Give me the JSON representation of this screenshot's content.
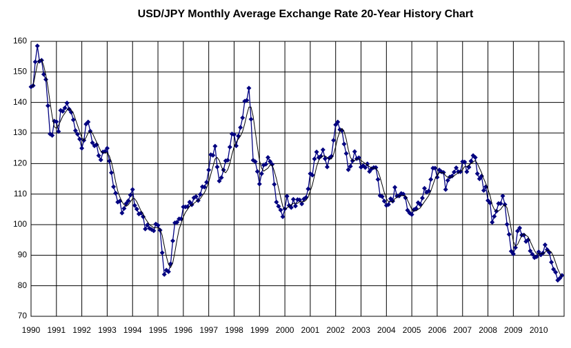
{
  "chart_data": {
    "type": "line",
    "title": "USD/JPY Monthly Average Exchange Rate 20-Year History Chart",
    "categories": [
      "1990",
      null,
      null,
      null,
      null,
      null,
      null,
      null,
      null,
      null,
      null,
      null,
      "1991",
      null,
      null,
      null,
      null,
      null,
      null,
      null,
      null,
      null,
      null,
      null,
      "1992",
      null,
      null,
      null,
      null,
      null,
      null,
      null,
      null,
      null,
      null,
      null,
      "1993",
      null,
      null,
      null,
      null,
      null,
      null,
      null,
      null,
      null,
      null,
      null,
      "1994",
      null,
      null,
      null,
      null,
      null,
      null,
      null,
      null,
      null,
      null,
      null,
      "1995",
      null,
      null,
      null,
      null,
      null,
      null,
      null,
      null,
      null,
      null,
      null,
      "1996",
      null,
      null,
      null,
      null,
      null,
      null,
      null,
      null,
      null,
      null,
      null,
      "1997",
      null,
      null,
      null,
      null,
      null,
      null,
      null,
      null,
      null,
      null,
      null,
      "1998",
      null,
      null,
      null,
      null,
      null,
      null,
      null,
      null,
      null,
      null,
      null,
      "1999",
      null,
      null,
      null,
      null,
      null,
      null,
      null,
      null,
      null,
      null,
      null,
      "2000",
      null,
      null,
      null,
      null,
      null,
      null,
      null,
      null,
      null,
      null,
      null,
      "2001",
      null,
      null,
      null,
      null,
      null,
      null,
      null,
      null,
      null,
      null,
      null,
      "2002",
      null,
      null,
      null,
      null,
      null,
      null,
      null,
      null,
      null,
      null,
      null,
      "2003",
      null,
      null,
      null,
      null,
      null,
      null,
      null,
      null,
      null,
      null,
      null,
      "2004",
      null,
      null,
      null,
      null,
      null,
      null,
      null,
      null,
      null,
      null,
      null,
      "2005",
      null,
      null,
      null,
      null,
      null,
      null,
      null,
      null,
      null,
      null,
      null,
      "2006",
      null,
      null,
      null,
      null,
      null,
      null,
      null,
      null,
      null,
      null,
      null,
      "2007",
      null,
      null,
      null,
      null,
      null,
      null,
      null,
      null,
      null,
      null,
      null,
      "2008",
      null,
      null,
      null,
      null,
      null,
      null,
      null,
      null,
      null,
      null,
      null,
      "2009",
      null,
      null,
      null,
      null,
      null,
      null,
      null,
      null,
      null,
      null,
      null,
      "2010",
      null,
      null,
      null,
      null,
      null,
      null,
      null,
      null,
      null,
      null,
      null
    ],
    "series": [
      {
        "color": "#000080",
        "markers": true,
        "values": [
          145.1,
          145.5,
          153.3,
          158.5,
          153.5,
          153.8,
          149.2,
          147.5,
          138.9,
          129.7,
          129.2,
          133.9,
          133.7,
          130.5,
          137.4,
          137.1,
          138.2,
          139.8,
          137.8,
          136.8,
          134.3,
          130.8,
          129.6,
          128.0,
          125.0,
          127.6,
          132.9,
          133.6,
          130.6,
          126.8,
          125.8,
          126.2,
          122.6,
          121.2,
          123.8,
          124.0,
          125.0,
          120.8,
          117.0,
          112.4,
          110.3,
          107.4,
          107.7,
          103.8,
          105.3,
          106.9,
          107.8,
          109.7,
          111.5,
          106.3,
          105.1,
          103.5,
          103.8,
          102.6,
          98.6,
          99.9,
          98.8,
          98.4,
          98.0,
          100.2,
          99.8,
          98.2,
          90.8,
          83.7,
          85.1,
          84.6,
          87.2,
          94.7,
          100.6,
          100.8,
          101.9,
          101.9,
          105.8,
          105.8,
          105.9,
          107.4,
          106.5,
          108.8,
          109.2,
          107.9,
          109.9,
          112.4,
          112.3,
          113.9,
          117.9,
          122.9,
          122.7,
          125.7,
          118.9,
          114.3,
          115.4,
          117.9,
          120.9,
          121.1,
          125.4,
          129.7,
          129.5,
          125.8,
          129.0,
          131.8,
          135.0,
          140.4,
          140.7,
          144.7,
          134.5,
          121.1,
          120.6,
          117.4,
          113.3,
          116.7,
          119.5,
          119.8,
          122.0,
          120.7,
          119.7,
          113.2,
          107.4,
          106.0,
          104.8,
          102.6,
          105.2,
          109.3,
          106.3,
          105.6,
          108.3,
          106.1,
          108.2,
          108.1,
          106.8,
          108.4,
          108.9,
          111.7,
          116.7,
          116.2,
          121.5,
          123.8,
          122.0,
          122.4,
          124.5,
          121.6,
          118.9,
          121.8,
          122.4,
          127.6,
          132.7,
          133.6,
          131.1,
          130.8,
          126.4,
          123.3,
          118.0,
          119.1,
          120.9,
          123.9,
          121.6,
          121.9,
          118.8,
          119.3,
          118.7,
          119.9,
          117.4,
          118.3,
          118.7,
          118.7,
          114.8,
          109.5,
          109.2,
          107.7,
          106.3,
          106.6,
          108.5,
          107.7,
          112.2,
          109.4,
          109.4,
          110.2,
          110.0,
          108.8,
          104.7,
          103.8,
          103.3,
          104.9,
          105.3,
          107.2,
          106.6,
          108.7,
          111.9,
          110.6,
          111.0,
          114.8,
          118.5,
          118.5,
          115.5,
          117.9,
          117.3,
          117.1,
          111.5,
          114.5,
          115.6,
          115.9,
          117.2,
          118.6,
          117.3,
          117.3,
          120.6,
          120.5,
          117.3,
          118.8,
          120.8,
          122.6,
          122.0,
          116.7,
          115.0,
          115.9,
          111.2,
          112.4,
          107.9,
          107.1,
          100.8,
          102.7,
          104.4,
          106.9,
          106.9,
          109.4,
          106.6,
          100.1,
          96.8,
          91.3,
          90.4,
          92.5,
          97.9,
          98.9,
          96.6,
          96.6,
          94.5,
          95.0,
          91.4,
          90.3,
          89.2,
          89.5,
          91.1,
          90.1,
          90.7,
          93.4,
          91.8,
          90.9,
          87.7,
          85.4,
          84.4,
          81.8,
          82.5,
          83.4
        ]
      },
      {
        "color": "#000000",
        "markers": false,
        "values": [
          145,
          145.5,
          149,
          152.5,
          154,
          154,
          152,
          149,
          145,
          140,
          135.5,
          132,
          131.5,
          132.5,
          134,
          135.5,
          136.5,
          137.5,
          138,
          137.5,
          136.5,
          134.5,
          132.5,
          130.5,
          128.5,
          127.5,
          128.5,
          130,
          130.5,
          130,
          128.5,
          127,
          125.5,
          124,
          123.5,
          123.5,
          123.5,
          122.5,
          120.5,
          117.5,
          114,
          111,
          109,
          107.5,
          106.5,
          106,
          106.5,
          107.5,
          108.5,
          108.5,
          107.5,
          106,
          104.5,
          103.5,
          102,
          101,
          100,
          99.5,
          99,
          99,
          99,
          98.5,
          96.5,
          93,
          89.5,
          87,
          86,
          87.5,
          91,
          95,
          98.5,
          100.5,
          102.5,
          104,
          105,
          106,
          106.5,
          107,
          107.5,
          108,
          108.5,
          109.5,
          110.5,
          112,
          114,
          116.5,
          119,
          121.5,
          122,
          121,
          119,
          117.5,
          117,
          118,
          120,
          123,
          125.5,
          127,
          128,
          129,
          130.5,
          133,
          136,
          138.5,
          138.5,
          135.5,
          130.5,
          125.5,
          121,
          118.5,
          117.5,
          118,
          118.5,
          119.5,
          119.5,
          117.5,
          115,
          112,
          109,
          106,
          105,
          105.5,
          106,
          106.5,
          107,
          107,
          107,
          107.5,
          107.5,
          107.5,
          108,
          109,
          111,
          113,
          116,
          119,
          121,
          122,
          122.5,
          122.5,
          122,
          121.5,
          121.5,
          123,
          125.5,
          128.5,
          130.5,
          131.5,
          130.5,
          128,
          124.5,
          122,
          121,
          121,
          121.5,
          121.5,
          121,
          120.5,
          120,
          119.5,
          119,
          118.5,
          118.5,
          118.5,
          117.5,
          115.5,
          113,
          110.5,
          108.5,
          107.5,
          107.5,
          107.5,
          108.5,
          109,
          109.5,
          109.5,
          109.5,
          109.5,
          108,
          106.5,
          105,
          104.5,
          104.5,
          105,
          105.5,
          106.5,
          107.5,
          108.5,
          109.5,
          111,
          113,
          115,
          116,
          117,
          117,
          117,
          116,
          115.5,
          115.5,
          115.5,
          116,
          116.5,
          117,
          117.5,
          118,
          119,
          119,
          119.5,
          120,
          120.5,
          121,
          120,
          118.5,
          117,
          115,
          113.5,
          111.5,
          109.5,
          106.5,
          105,
          104.5,
          104.5,
          105,
          106,
          106.5,
          105.5,
          102.5,
          98.5,
          94.5,
          93,
          93.5,
          95,
          96.5,
          97,
          96.5,
          96,
          94.5,
          93,
          91.5,
          90.5,
          90.5,
          90.5,
          90.5,
          91,
          91.5,
          91.5,
          91,
          89.5,
          87.5,
          85.5,
          84,
          83
        ]
      }
    ],
    "ylim": [
      70,
      160
    ],
    "yticks": [
      70,
      80,
      90,
      100,
      110,
      120,
      130,
      140,
      150,
      160
    ],
    "grid": true
  }
}
